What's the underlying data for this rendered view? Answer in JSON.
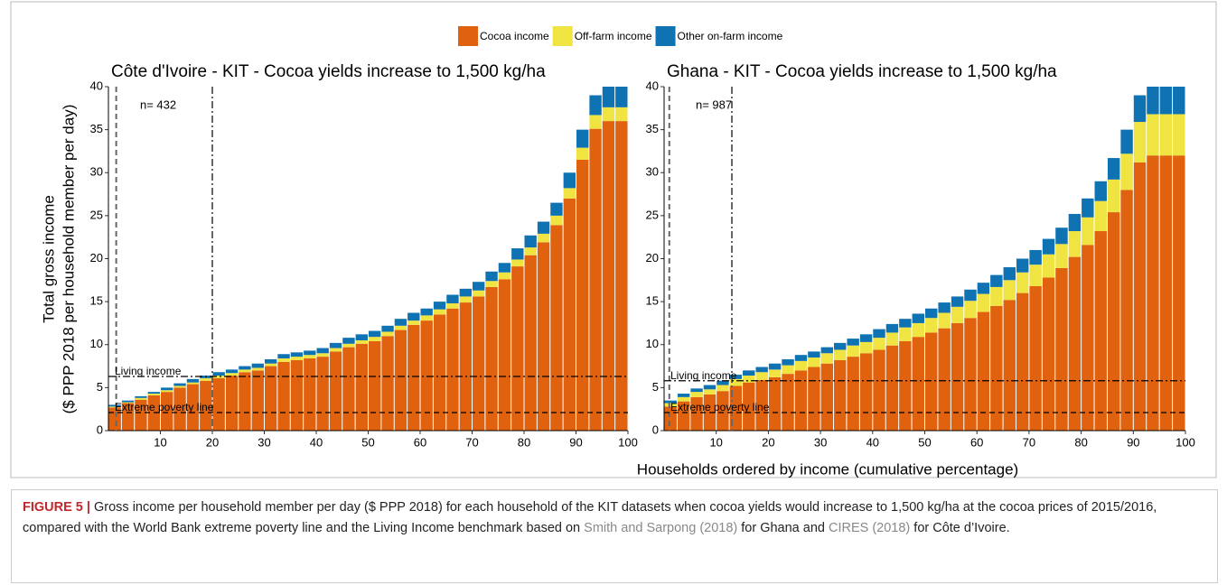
{
  "chart_data": [
    {
      "type": "bar",
      "title": "Côte d'Ivoire - KIT - Cocoa yields increase to 1,500 kg/ha",
      "ylabel": [
        "Total gross income",
        "($ PPP 2018 per household member per day)"
      ],
      "xlabel": "Households ordered by income (cumulative percentage)",
      "annotation": "n= 432",
      "x": [
        2.5,
        5,
        7.5,
        10,
        12.5,
        15,
        17.5,
        20,
        22.5,
        25,
        27.5,
        30,
        32.5,
        35,
        37.5,
        40,
        42.5,
        45,
        47.5,
        50,
        52.5,
        55,
        57.5,
        60,
        62.5,
        65,
        67.5,
        70,
        72.5,
        75,
        77.5,
        80,
        82.5,
        85,
        87.5,
        90,
        92.5,
        95,
        97.5,
        100
      ],
      "series": [
        {
          "name": "Cocoa income",
          "color": "#e0620f",
          "values": [
            2.7,
            3.2,
            3.6,
            4.1,
            4.5,
            5,
            5.4,
            5.8,
            6.1,
            6.4,
            6.8,
            7,
            7.5,
            8,
            8.2,
            8.4,
            8.6,
            9.2,
            9.7,
            10.1,
            10.4,
            11,
            11.7,
            12.3,
            12.8,
            13.5,
            14.2,
            14.9,
            15.6,
            16.7,
            17.6,
            19.1,
            20.4,
            21.9,
            23.9,
            27,
            31.5,
            35.1,
            36,
            36
          ]
        },
        {
          "name": "Off-farm income",
          "color": "#f0e442",
          "values": [
            0.1,
            0.1,
            0.2,
            0.2,
            0.2,
            0.2,
            0.2,
            0.3,
            0.3,
            0.3,
            0.3,
            0.3,
            0.3,
            0.4,
            0.4,
            0.4,
            0.4,
            0.4,
            0.4,
            0.4,
            0.5,
            0.5,
            0.5,
            0.5,
            0.6,
            0.6,
            0.6,
            0.7,
            0.7,
            0.7,
            0.8,
            0.8,
            0.9,
            1,
            1.1,
            1.2,
            1.4,
            1.6,
            1.6,
            1.6
          ]
        },
        {
          "name": "Other on-farm income",
          "color": "#0f72b2",
          "values": [
            0.2,
            0.2,
            0.2,
            0.2,
            0.3,
            0.3,
            0.4,
            0.3,
            0.4,
            0.4,
            0.4,
            0.5,
            0.5,
            0.5,
            0.5,
            0.5,
            0.6,
            0.6,
            0.7,
            0.7,
            0.7,
            0.7,
            0.8,
            0.9,
            0.8,
            0.9,
            1,
            0.9,
            1,
            1.1,
            1.1,
            1.3,
            1.4,
            1.4,
            1.5,
            1.8,
            2.1,
            2.3,
            2.4,
            2.4
          ]
        }
      ],
      "hlines": [
        {
          "y": 6.3,
          "label": "Living income",
          "style": "dashdot"
        },
        {
          "y": 2.1,
          "label": "Extreme poverty line",
          "style": "dashed"
        }
      ],
      "vlines": [
        {
          "x": 1.5,
          "style": "dashed"
        },
        {
          "x": 20,
          "style": "dashdot"
        }
      ],
      "xlim": [
        0,
        100
      ],
      "xticks": [
        10,
        20,
        30,
        40,
        50,
        60,
        70,
        80,
        90,
        100
      ],
      "ylim": [
        0,
        40
      ],
      "yticks": [
        0,
        5,
        10,
        15,
        20,
        25,
        30,
        35,
        40
      ]
    },
    {
      "type": "bar",
      "title": "Ghana - KIT - Cocoa yields increase to 1,500 kg/ha",
      "annotation": "n= 987",
      "x": [
        2.5,
        5,
        7.5,
        10,
        12.5,
        15,
        17.5,
        20,
        22.5,
        25,
        27.5,
        30,
        32.5,
        35,
        37.5,
        40,
        42.5,
        45,
        47.5,
        50,
        52.5,
        55,
        57.5,
        60,
        62.5,
        65,
        67.5,
        70,
        72.5,
        75,
        77.5,
        80,
        82.5,
        85,
        87.5,
        90,
        92.5,
        95,
        97.5,
        100
      ],
      "series": [
        {
          "color": "#e0620f",
          "values": [
            2.8,
            3.4,
            3.9,
            4.2,
            4.6,
            5.2,
            5.6,
            5.9,
            6.2,
            6.6,
            7,
            7.4,
            7.8,
            8.2,
            8.6,
            9,
            9.4,
            9.9,
            10.4,
            10.9,
            11.4,
            11.9,
            12.5,
            13.1,
            13.8,
            14.5,
            15.2,
            16,
            16.8,
            17.8,
            18.9,
            20.2,
            21.6,
            23.2,
            25.4,
            28,
            31.2,
            32,
            32,
            32
          ]
        },
        {
          "color": "#f0e442",
          "values": [
            0.4,
            0.5,
            0.6,
            0.6,
            0.7,
            0.8,
            0.8,
            0.9,
            0.9,
            1,
            1.1,
            1.1,
            1.2,
            1.2,
            1.3,
            1.3,
            1.4,
            1.5,
            1.6,
            1.6,
            1.7,
            1.8,
            1.9,
            2,
            2.1,
            2.2,
            2.3,
            2.4,
            2.5,
            2.7,
            2.8,
            3,
            3.2,
            3.5,
            3.8,
            4.2,
            4.7,
            4.8,
            4.8,
            4.8
          ]
        },
        {
          "color": "#0f72b2",
          "values": [
            0.3,
            0.4,
            0.4,
            0.5,
            0.5,
            0.5,
            0.6,
            0.6,
            0.7,
            0.7,
            0.7,
            0.7,
            0.7,
            0.8,
            0.8,
            0.9,
            1,
            1,
            1,
            1.1,
            1.1,
            1.2,
            1.2,
            1.3,
            1.3,
            1.4,
            1.5,
            1.6,
            1.7,
            1.8,
            1.9,
            2,
            2.2,
            2.3,
            2.5,
            2.8,
            3.1,
            3.2,
            3.2,
            3.2
          ]
        }
      ],
      "hlines": [
        {
          "y": 5.8,
          "label": "Living income",
          "style": "dashdot"
        },
        {
          "y": 2.1,
          "label": "Extreme poverty line",
          "style": "dashed"
        }
      ],
      "vlines": [
        {
          "x": 1,
          "style": "dashed"
        },
        {
          "x": 13,
          "style": "dashdot"
        }
      ],
      "xlim": [
        0,
        100
      ],
      "xticks": [
        10,
        20,
        30,
        40,
        50,
        60,
        70,
        80,
        90,
        100
      ],
      "ylim": [
        0,
        40
      ],
      "yticks": [
        0,
        5,
        10,
        15,
        20,
        25,
        30,
        35,
        40
      ]
    }
  ],
  "caption": {
    "label": "FIGURE 5 |",
    "text_1": " Gross income per household member per day ($ PPP 2018) for each household of the KIT datasets when cocoa yields would increase to 1,500 kg/ha at the cocoa prices of 2015/2016, compared with the World Bank extreme poverty line and the Living Income benchmark based on ",
    "ref_1": "Smith and Sarpong (2018)",
    "text_2": " for Ghana and ",
    "ref_2": "CIRES (2018)",
    "text_3": " for Côte d’Ivoire."
  }
}
